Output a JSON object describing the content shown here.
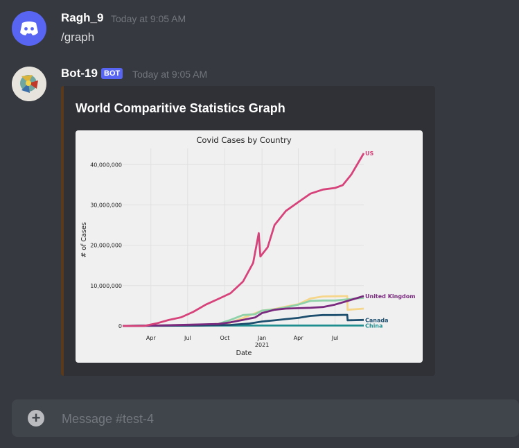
{
  "messages": [
    {
      "author": "Ragh_9",
      "timestamp": "Today at 9:05 AM",
      "content": "/graph",
      "avatar_icon": "discord-logo-icon",
      "avatar_color": "#5865f2"
    },
    {
      "author": "Bot-19",
      "bot_tag": "BOT",
      "timestamp": "Today at 9:05 AM",
      "avatar_icon": "bot-avatar-icon",
      "embed": {
        "title": "World Comparitive Statistics Graph",
        "accent_color": "#5a3a1a"
      }
    }
  ],
  "composer": {
    "placeholder": "Message #test-4",
    "plus_icon": "plus-circle-icon"
  },
  "chart_data": {
    "type": "line",
    "title": "Covid Cases by Country",
    "xlabel": "Date",
    "ylabel": "# of Cases",
    "x_ticks": [
      "Apr",
      "Jul",
      "Oct",
      "Jan",
      "Apr",
      "Jul"
    ],
    "x_tick_sub": [
      "",
      "",
      "",
      "2021",
      "",
      ""
    ],
    "x_tick_dates": [
      "2020-04-01",
      "2020-07-01",
      "2020-10-01",
      "2021-01-01",
      "2021-04-01",
      "2021-07-01"
    ],
    "y_ticks": [
      0,
      10000000,
      20000000,
      30000000,
      40000000
    ],
    "y_tick_labels": [
      "0",
      "10,000,000",
      "20,000,000",
      "30,000,000",
      "40,000,000"
    ],
    "ylim": [
      0,
      44000000
    ],
    "xlim": [
      "2020-01-22",
      "2021-09-10"
    ],
    "grid": true,
    "series": [
      {
        "name": "US",
        "color": "#d6437a",
        "labeled": true,
        "points": [
          [
            "2020-01-22",
            0
          ],
          [
            "2020-03-15",
            3000
          ],
          [
            "2020-04-15",
            640000
          ],
          [
            "2020-05-15",
            1480000
          ],
          [
            "2020-06-15",
            2140000
          ],
          [
            "2020-07-15",
            3500000
          ],
          [
            "2020-08-15",
            5300000
          ],
          [
            "2020-09-15",
            6700000
          ],
          [
            "2020-10-15",
            8100000
          ],
          [
            "2020-11-15",
            11000000
          ],
          [
            "2020-12-10",
            15600000
          ],
          [
            "2020-12-24",
            23000000
          ],
          [
            "2020-12-28",
            17200000
          ],
          [
            "2021-01-15",
            19500000
          ],
          [
            "2021-02-01",
            25000000
          ],
          [
            "2021-03-01",
            28500000
          ],
          [
            "2021-04-01",
            30700000
          ],
          [
            "2021-05-01",
            32800000
          ],
          [
            "2021-06-01",
            33800000
          ],
          [
            "2021-07-01",
            34200000
          ],
          [
            "2021-07-20",
            34900000
          ],
          [
            "2021-08-10",
            37500000
          ],
          [
            "2021-09-10",
            42800000
          ]
        ]
      },
      {
        "name": "India",
        "color": "#f6d68a",
        "labeled": false,
        "points": [
          [
            "2020-01-22",
            0
          ],
          [
            "2020-06-01",
            200000
          ],
          [
            "2020-09-01",
            400000
          ],
          [
            "2020-10-15",
            800000
          ],
          [
            "2020-11-15",
            2000000
          ],
          [
            "2021-01-01",
            3800000
          ],
          [
            "2021-02-01",
            4200000
          ],
          [
            "2021-03-01",
            4800000
          ],
          [
            "2021-04-01",
            5400000
          ],
          [
            "2021-05-01",
            6800000
          ],
          [
            "2021-06-01",
            7300000
          ],
          [
            "2021-07-01",
            7350000
          ],
          [
            "2021-07-31",
            7400000
          ],
          [
            "2021-08-01",
            4000000
          ],
          [
            "2021-09-10",
            4300000
          ]
        ]
      },
      {
        "name": "Brazil",
        "color": "#8fd1a8",
        "labeled": false,
        "points": [
          [
            "2020-01-22",
            0
          ],
          [
            "2020-07-01",
            200000
          ],
          [
            "2020-09-15",
            500000
          ],
          [
            "2020-10-15",
            1500000
          ],
          [
            "2020-11-15",
            2700000
          ],
          [
            "2020-12-15",
            2900000
          ],
          [
            "2021-01-01",
            3800000
          ],
          [
            "2021-02-01",
            4100000
          ],
          [
            "2021-03-01",
            4600000
          ],
          [
            "2021-04-01",
            5300000
          ],
          [
            "2021-05-01",
            6200000
          ],
          [
            "2021-06-01",
            6300000
          ],
          [
            "2021-07-01",
            6300000
          ],
          [
            "2021-08-01",
            6600000
          ],
          [
            "2021-09-10",
            7000000
          ]
        ]
      },
      {
        "name": "United Kingdom",
        "color": "#7a2a7e",
        "labeled": true,
        "points": [
          [
            "2020-01-22",
            0
          ],
          [
            "2020-04-15",
            100000
          ],
          [
            "2020-07-01",
            300000
          ],
          [
            "2020-09-15",
            500000
          ],
          [
            "2020-10-15",
            900000
          ],
          [
            "2020-11-15",
            1500000
          ],
          [
            "2020-12-15",
            2100000
          ],
          [
            "2021-01-01",
            3200000
          ],
          [
            "2021-02-01",
            4000000
          ],
          [
            "2021-03-01",
            4300000
          ],
          [
            "2021-04-01",
            4400000
          ],
          [
            "2021-05-01",
            4500000
          ],
          [
            "2021-06-01",
            4700000
          ],
          [
            "2021-07-01",
            5300000
          ],
          [
            "2021-08-01",
            6200000
          ],
          [
            "2021-09-10",
            7400000
          ]
        ]
      },
      {
        "name": "Canada",
        "color": "#1d4e6e",
        "labeled": true,
        "points": [
          [
            "2020-01-22",
            0
          ],
          [
            "2020-05-01",
            60000
          ],
          [
            "2020-08-01",
            120000
          ],
          [
            "2020-10-15",
            250000
          ],
          [
            "2020-12-01",
            600000
          ],
          [
            "2021-01-01",
            1100000
          ],
          [
            "2021-02-01",
            1400000
          ],
          [
            "2021-03-01",
            1700000
          ],
          [
            "2021-04-01",
            2000000
          ],
          [
            "2021-05-01",
            2500000
          ],
          [
            "2021-06-01",
            2700000
          ],
          [
            "2021-07-01",
            2700000
          ],
          [
            "2021-07-31",
            2750000
          ],
          [
            "2021-08-01",
            1400000
          ],
          [
            "2021-09-10",
            1500000
          ]
        ]
      },
      {
        "name": "China",
        "color": "#1f8e8e",
        "labeled": true,
        "points": [
          [
            "2020-01-22",
            0
          ],
          [
            "2020-03-01",
            80000
          ],
          [
            "2020-06-01",
            84000
          ],
          [
            "2021-01-01",
            96000
          ],
          [
            "2021-09-10",
            110000
          ]
        ]
      }
    ]
  }
}
